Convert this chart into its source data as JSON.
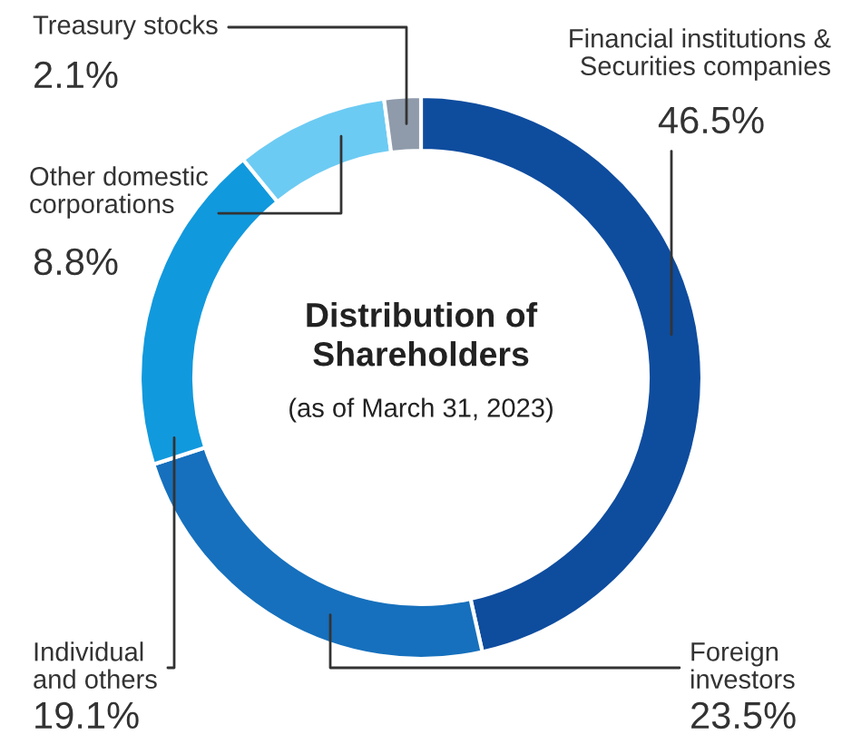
{
  "chart_data": {
    "type": "donut",
    "title": "Distribution of\nShareholders",
    "subtitle": "(as of March 31, 2023)",
    "categories": [
      "Financial institutions &\nSecurities companies",
      "Foreign\ninvestors",
      "Individual\nand others",
      "Other domestic\ncorporations",
      "Treasury stocks"
    ],
    "values": [
      46.5,
      23.5,
      19.1,
      8.8,
      2.1
    ],
    "value_labels": [
      "46.5%",
      "23.5%",
      "19.1%",
      "8.8%",
      "2.1%"
    ],
    "colors": [
      "#0e4c9e",
      "#1670bd",
      "#1199dd",
      "#6ccbf3",
      "#8f9bab"
    ],
    "legend": false
  }
}
